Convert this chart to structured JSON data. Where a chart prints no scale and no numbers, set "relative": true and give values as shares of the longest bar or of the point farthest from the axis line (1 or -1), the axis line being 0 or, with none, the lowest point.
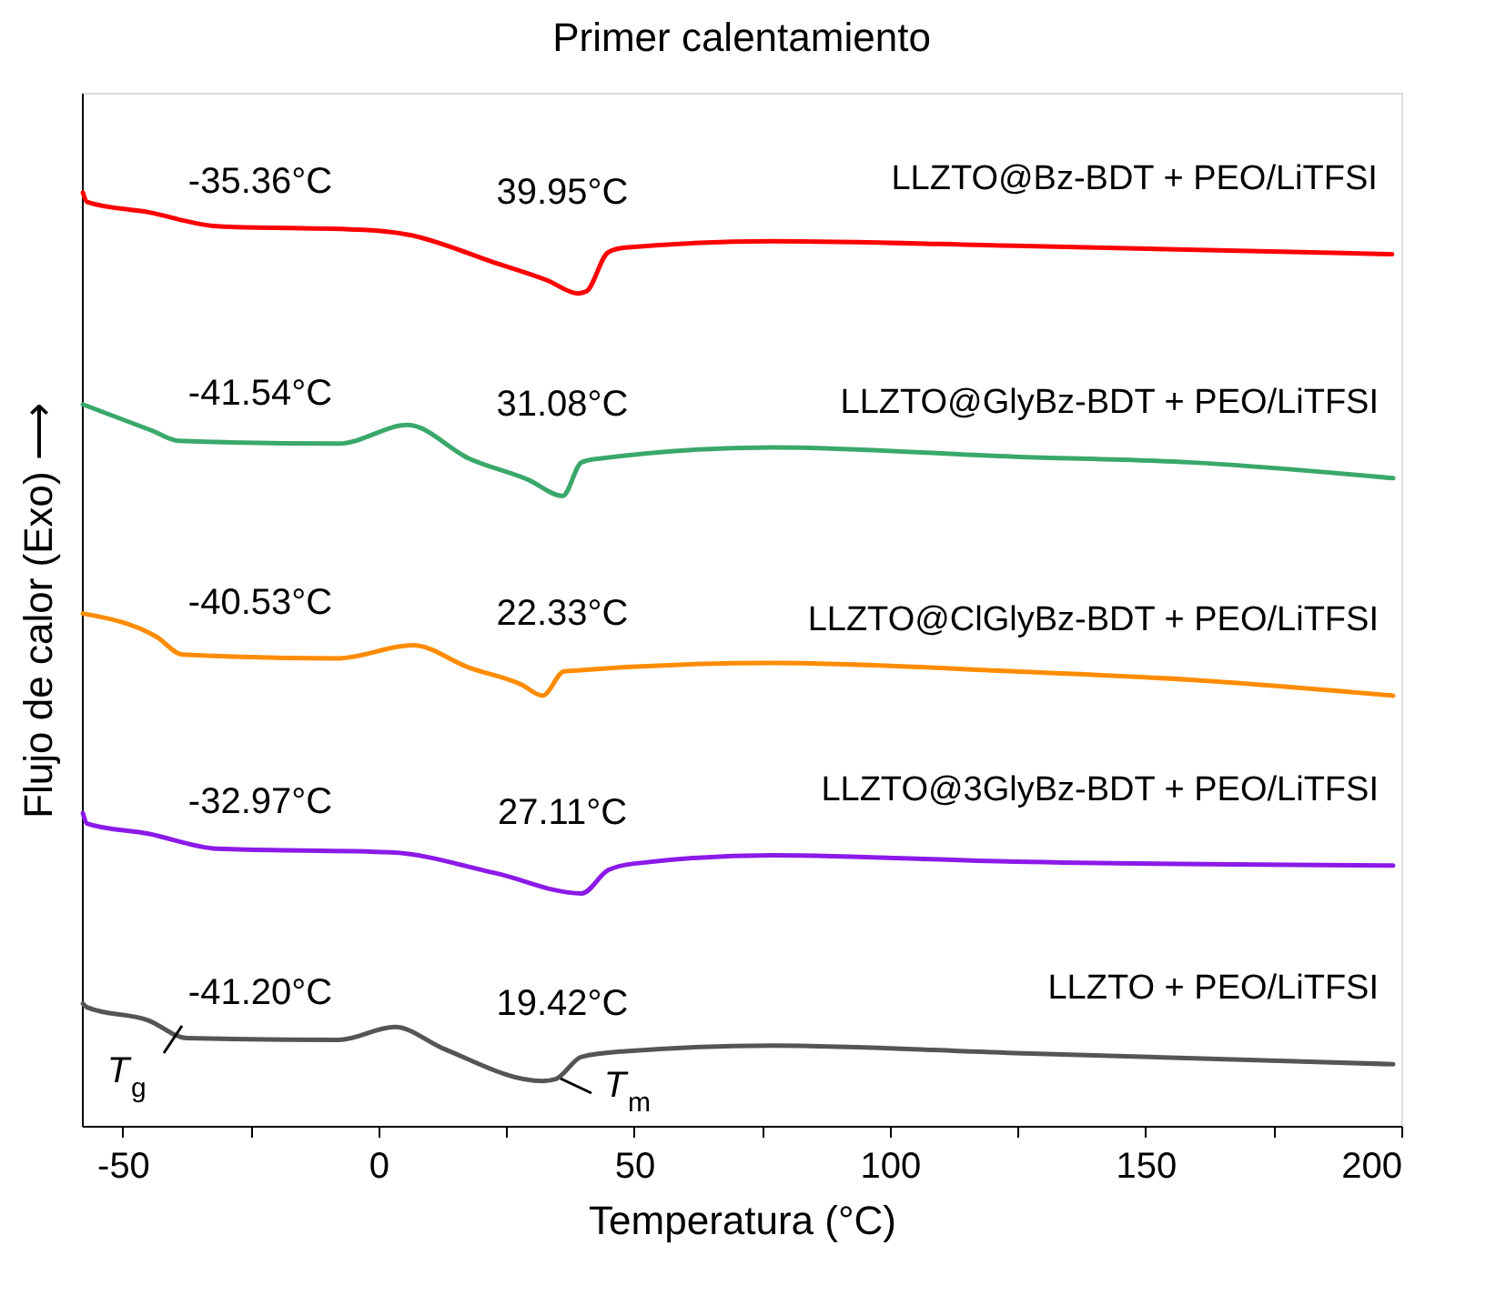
{
  "chart_data": {
    "type": "line",
    "relative": true,
    "title": "Primer calentamiento",
    "xlabel": "Temperatura (°C)",
    "ylabel": "Flujo de calor (Exo) ⟶",
    "xlim": [
      -58,
      200
    ],
    "xticks": [
      -50,
      {
        "value": -25,
        "label": null
      },
      0,
      {
        "value": 25,
        "label": null
      },
      50,
      {
        "value": 75,
        "label": null
      },
      100,
      {
        "value": 125,
        "label": null
      },
      150,
      {
        "value": 175,
        "label": null
      },
      200
    ],
    "grid": false,
    "line_style": "solid",
    "marker": "none",
    "series": [
      {
        "name": "LLZTO@Bz-BDT + PEO/LiTFSI",
        "color": "#ff0000",
        "x": [
          -57.8,
          -57,
          -45,
          -31.6,
          -2.8,
          5.7,
          22.7,
          33,
          39,
          40.6,
          44.9,
          48.2,
          77,
          124.5,
          198.2
        ],
        "values": [
          1.0,
          0.99,
          0.979,
          0.964,
          0.96,
          0.955,
          0.925,
          0.906,
          0.892,
          0.894,
          0.936,
          0.941,
          0.948,
          0.943,
          0.934
        ]
      },
      {
        "name": "LLZTO@GlyBz-BDT + PEO/LiTFSI",
        "color": "#3aa86b",
        "x": [
          -57.8,
          -44.3,
          -39.1,
          -7.8,
          5.7,
          17.7,
          29.4,
          36,
          39.7,
          43.2,
          77,
          124.5,
          158.5,
          198.4
        ],
        "values": [
          0.773,
          0.745,
          0.734,
          0.731,
          0.751,
          0.715,
          0.692,
          0.675,
          0.711,
          0.715,
          0.727,
          0.717,
          0.711,
          0.694
        ]
      },
      {
        "name": "LLZTO@ClGlyBz-BDT + PEO/LiTFSI",
        "color": "#ff8c00",
        "x": [
          -57.8,
          -43.4,
          -38.3,
          -7.8,
          6.7,
          17.7,
          27.9,
          32.1,
          36.3,
          77,
          124.5,
          158.5,
          198.4
        ],
        "values": [
          0.549,
          0.524,
          0.505,
          0.501,
          0.515,
          0.491,
          0.473,
          0.461,
          0.487,
          0.496,
          0.487,
          0.478,
          0.461
        ]
      },
      {
        "name": "LLZTO@3GlyBz-BDT + PEO/LiTFSI",
        "color": "#8b1ae8",
        "x": [
          -57.8,
          -57,
          -45,
          -31.6,
          2.5,
          22.7,
          39.7,
          44.9,
          50,
          77,
          124.5,
          198.4
        ],
        "values": [
          0.335,
          0.324,
          0.313,
          0.297,
          0.293,
          0.271,
          0.249,
          0.274,
          0.281,
          0.29,
          0.283,
          0.279
        ]
      },
      {
        "name": "LLZTO + PEO/LiTFSI",
        "color": "#555555",
        "x": [
          -57.8,
          -57,
          -45,
          -37.5,
          -7.8,
          3.2,
          12.6,
          32.1,
          34.6,
          39.7,
          48.2,
          77,
          124.5,
          198.4
        ],
        "values": [
          0.131,
          0.127,
          0.113,
          0.094,
          0.092,
          0.106,
          0.083,
          0.048,
          0.05,
          0.074,
          0.08,
          0.086,
          0.078,
          0.066
        ]
      }
    ],
    "annotations": [
      "-35.36°C",
      "39.95°C",
      "-41.54°C",
      "31.08°C",
      "-40.53°C",
      "22.33°C",
      "-32.97°C",
      "27.11°C",
      "-41.20°C",
      "19.42°C",
      "T$_{g}$",
      "T$_{m}$"
    ]
  }
}
